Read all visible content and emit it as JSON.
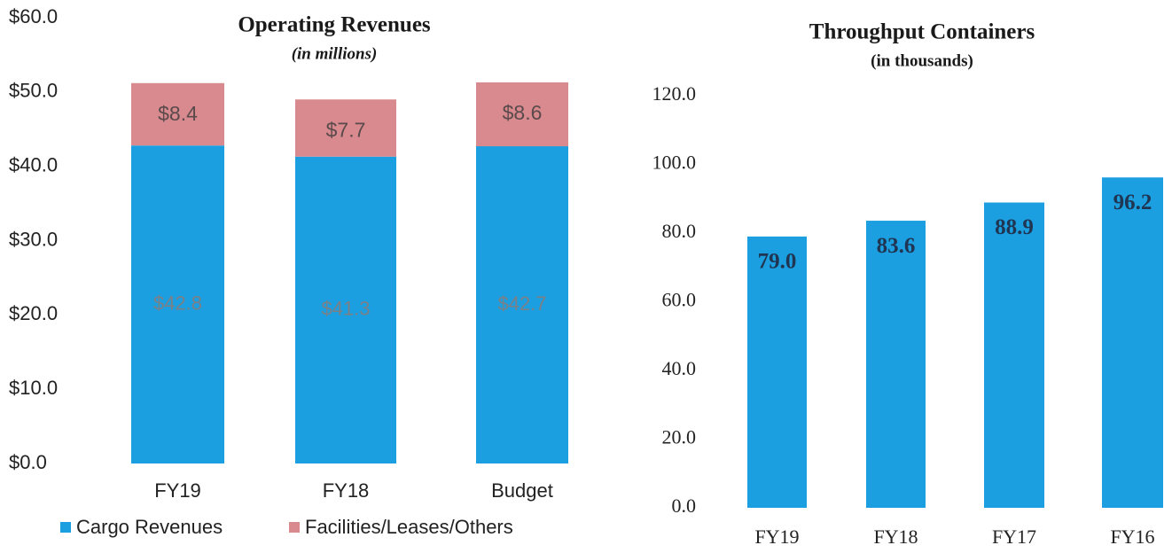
{
  "chart_data": [
    {
      "type": "stacked_bar",
      "title": "Operating Revenues",
      "subtitle": "(in millions)",
      "categories": [
        "FY19",
        "FY18",
        "Budget"
      ],
      "series": [
        {
          "name": "Cargo Revenues",
          "color": "#1c9fe0",
          "values": [
            42.8,
            41.3,
            42.7
          ],
          "value_labels": [
            "$42.8",
            "$41.3",
            "$42.7"
          ]
        },
        {
          "name": "Facilities/Leases/Others",
          "color": "#d88a8e",
          "values": [
            8.4,
            7.7,
            8.6
          ],
          "value_labels": [
            "$8.4",
            "$7.7",
            "$8.6"
          ]
        }
      ],
      "ylim": [
        0,
        60
      ],
      "yticks": [
        {
          "value": 0,
          "label": "$0.0"
        },
        {
          "value": 10,
          "label": "$10.0"
        },
        {
          "value": 20,
          "label": "$20.0"
        },
        {
          "value": 30,
          "label": "$30.0"
        },
        {
          "value": 40,
          "label": "$40.0"
        },
        {
          "value": 50,
          "label": "$50.0"
        },
        {
          "value": 60,
          "label": "$60.0"
        }
      ],
      "legend": "bottom"
    },
    {
      "type": "bar",
      "title": "Throughput Containers",
      "subtitle": "(in thousands)",
      "categories": [
        "FY19",
        "FY18",
        "FY17",
        "FY16"
      ],
      "values": [
        79.0,
        83.6,
        88.9,
        96.2
      ],
      "value_labels": [
        "79.0",
        "83.6",
        "88.9",
        "96.2"
      ],
      "color": "#1c9fe0",
      "ylim": [
        0,
        120
      ],
      "yticks": [
        {
          "value": 0,
          "label": "0.0"
        },
        {
          "value": 20,
          "label": "20.0"
        },
        {
          "value": 40,
          "label": "40.0"
        },
        {
          "value": 60,
          "label": "60.0"
        },
        {
          "value": 80,
          "label": "80.0"
        },
        {
          "value": 100,
          "label": "100.0"
        },
        {
          "value": 120,
          "label": "120.0"
        }
      ]
    }
  ]
}
